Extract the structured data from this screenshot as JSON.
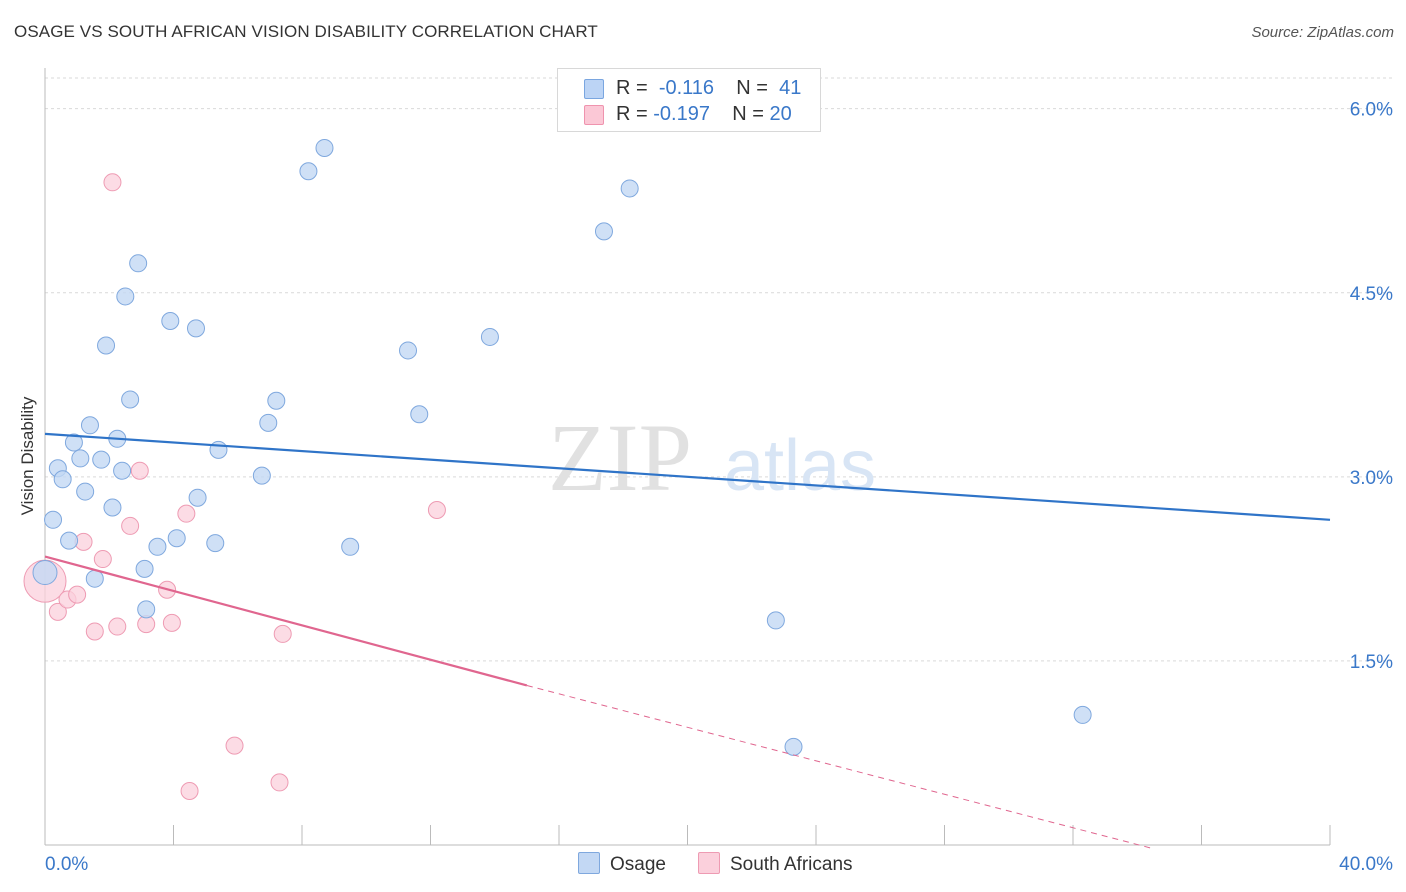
{
  "title": "OSAGE VS SOUTH AFRICAN VISION DISABILITY CORRELATION CHART",
  "source": "Source: ZipAtlas.com",
  "watermark": {
    "zip": "ZIP",
    "atlas": "atlas"
  },
  "legend": {
    "r_label": "R =",
    "n_label": "N =",
    "rows": [
      {
        "r": "-0.116",
        "n": "41",
        "fill": "#bcd4f5",
        "stroke": "#7aa6e0"
      },
      {
        "r": "-0.197",
        "n": "20",
        "fill": "#fbc8d6",
        "stroke": "#ef93ae"
      }
    ]
  },
  "bottom_legend": {
    "osage": "Osage",
    "south_africans": "South Africans"
  },
  "colors": {
    "osage_fill": "#c3d8f4",
    "osage_stroke": "#7fa8de",
    "osage_line": "#2f74c8",
    "sa_fill": "#fbd0dc",
    "sa_stroke": "#ee9bb3",
    "sa_line": "#e0668f",
    "axis_text": "#3a78c9",
    "grid": "#d9d9d9"
  },
  "chart_data": {
    "type": "scatter",
    "title": "OSAGE VS SOUTH AFRICAN VISION DISABILITY CORRELATION CHART",
    "xlabel": "",
    "ylabel": "Vision Disability",
    "xlim": [
      0,
      40
    ],
    "ylim": [
      0,
      6.25
    ],
    "x_tick_labels": [
      "0.0%",
      "40.0%"
    ],
    "y_ticks": [
      1.5,
      3.0,
      4.5,
      6.0
    ],
    "y_tick_labels": [
      "1.5%",
      "3.0%",
      "4.5%",
      "6.0%"
    ],
    "grid": "horizontal dashed",
    "legend_position": "top-center",
    "series": [
      {
        "name": "Osage",
        "points": [
          [
            0.0,
            2.22
          ],
          [
            0.25,
            2.65
          ],
          [
            0.4,
            3.07
          ],
          [
            0.55,
            2.98
          ],
          [
            0.75,
            2.48
          ],
          [
            0.9,
            3.28
          ],
          [
            1.1,
            3.15
          ],
          [
            1.25,
            2.88
          ],
          [
            1.4,
            3.42
          ],
          [
            1.55,
            2.17
          ],
          [
            1.75,
            3.14
          ],
          [
            1.9,
            4.07
          ],
          [
            2.1,
            2.75
          ],
          [
            2.25,
            3.31
          ],
          [
            2.4,
            3.05
          ],
          [
            2.5,
            4.47
          ],
          [
            2.65,
            3.63
          ],
          [
            2.9,
            4.74
          ],
          [
            3.1,
            2.25
          ],
          [
            3.15,
            1.92
          ],
          [
            3.5,
            2.43
          ],
          [
            3.9,
            4.27
          ],
          [
            4.1,
            2.5
          ],
          [
            4.7,
            4.21
          ],
          [
            4.75,
            2.83
          ],
          [
            5.3,
            2.46
          ],
          [
            5.4,
            3.22
          ],
          [
            6.75,
            3.01
          ],
          [
            6.95,
            3.44
          ],
          [
            7.2,
            3.62
          ],
          [
            8.2,
            5.49
          ],
          [
            8.7,
            5.68
          ],
          [
            9.5,
            2.43
          ],
          [
            11.3,
            4.03
          ],
          [
            11.65,
            3.51
          ],
          [
            13.85,
            4.14
          ],
          [
            17.4,
            5.0
          ],
          [
            18.2,
            5.35
          ],
          [
            22.75,
            1.83
          ],
          [
            23.3,
            0.8
          ],
          [
            32.3,
            1.06
          ]
        ]
      },
      {
        "name": "South Africans",
        "points": [
          [
            0.0,
            2.15
          ],
          [
            0.4,
            1.9
          ],
          [
            0.7,
            2.0
          ],
          [
            1.0,
            2.04
          ],
          [
            1.2,
            2.47
          ],
          [
            1.55,
            1.74
          ],
          [
            1.8,
            2.33
          ],
          [
            2.1,
            5.4
          ],
          [
            2.25,
            1.78
          ],
          [
            2.65,
            2.6
          ],
          [
            2.95,
            3.05
          ],
          [
            3.15,
            1.8
          ],
          [
            3.8,
            2.08
          ],
          [
            3.95,
            1.81
          ],
          [
            4.4,
            2.7
          ],
          [
            4.5,
            0.44
          ],
          [
            5.9,
            0.81
          ],
          [
            7.3,
            0.51
          ],
          [
            7.4,
            1.72
          ],
          [
            12.2,
            2.73
          ]
        ]
      }
    ],
    "trend_lines": [
      {
        "name": "Osage",
        "x": [
          0,
          40
        ],
        "y": [
          3.35,
          2.65
        ],
        "style": "solid"
      },
      {
        "name": "South Africans",
        "x": [
          0,
          15
        ],
        "y": [
          2.35,
          1.3
        ],
        "style": "solid",
        "extension_x": [
          15,
          34.5
        ],
        "extension_y": [
          1.3,
          -0.03
        ],
        "extension_style": "dashed"
      }
    ]
  }
}
